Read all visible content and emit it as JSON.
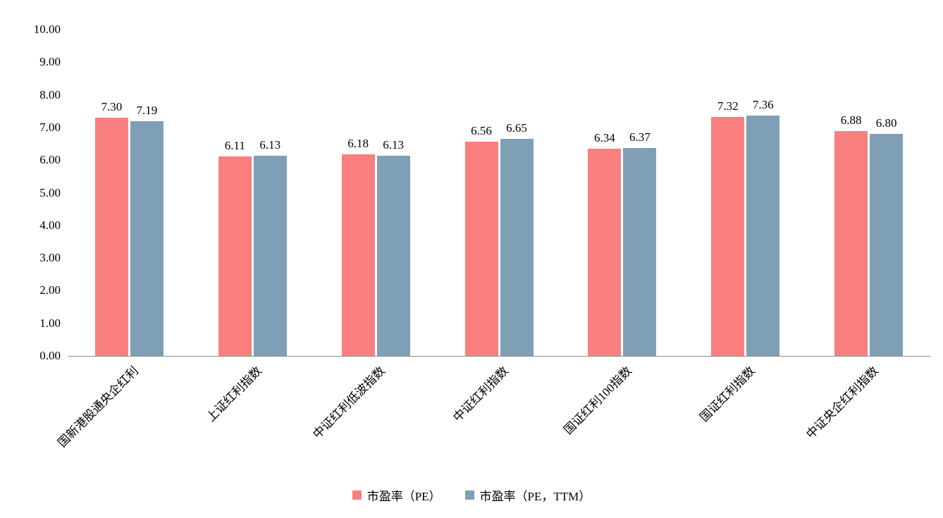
{
  "chart_data": {
    "type": "bar",
    "title": "",
    "categories": [
      "国新港股通央企红利",
      "上证红利指数",
      "中证红利低波指数",
      "中证红利指数",
      "国证红利100指数",
      "国证红利指数",
      "中证央企红利指数"
    ],
    "series": [
      {
        "id": "pe",
        "name": "市盈率（PE）",
        "color": "#F97F7F",
        "values": [
          7.3,
          6.11,
          6.18,
          6.56,
          6.34,
          7.32,
          6.88
        ]
      },
      {
        "id": "pe_ttm",
        "name": "市盈率（PE，TTM）",
        "color": "#7E9FB5",
        "values": [
          7.19,
          6.13,
          6.13,
          6.65,
          6.37,
          7.36,
          6.8
        ]
      }
    ],
    "xlabel": "",
    "ylabel": "",
    "ylim": [
      0,
      10
    ],
    "ytick_step": 1,
    "ytick_decimals": 2,
    "value_label_decimals": 2,
    "grid": false,
    "legend_position": "bottom",
    "axis_line_color": "#8C8C8C",
    "text_color": "#000000",
    "background_color": "#FFFFFF"
  }
}
